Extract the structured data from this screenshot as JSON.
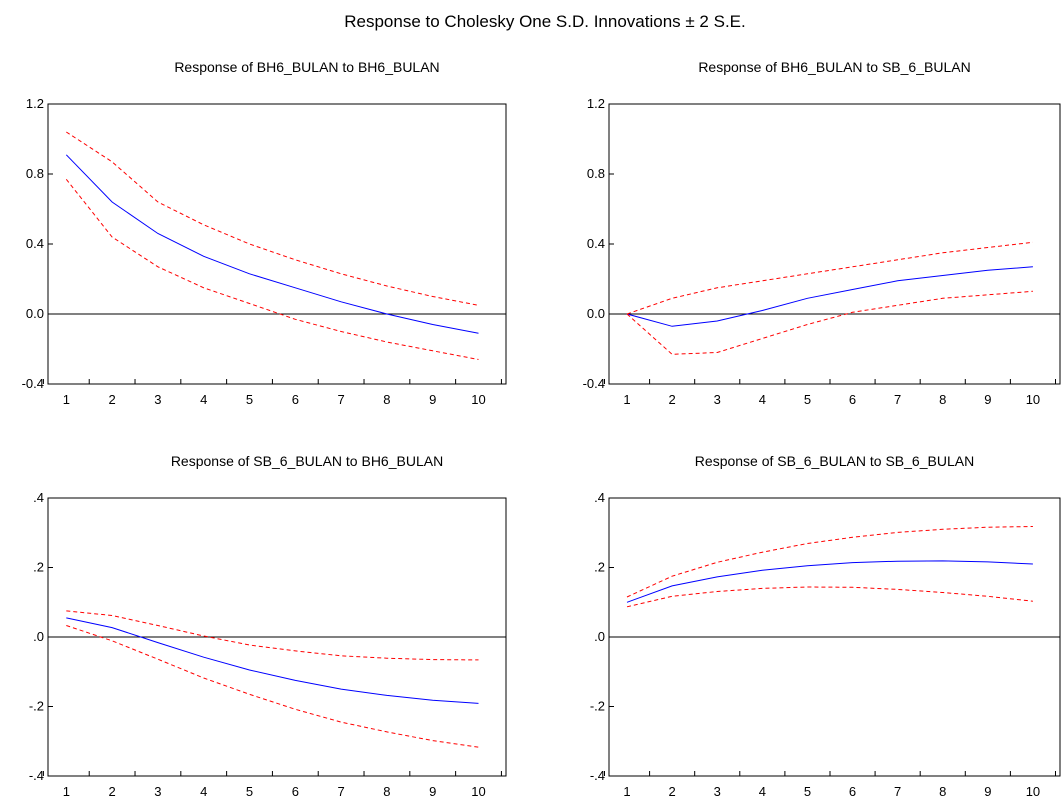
{
  "title": "Response to Cholesky One S.D. Innovations ± 2 S.E.",
  "colors": {
    "response": "#0000ff",
    "band": "#ff0000",
    "zero_line": "#000000",
    "frame": "#000000"
  },
  "chart_data": [
    {
      "type": "line",
      "title": "Response of BH6_BULAN to BH6_BULAN",
      "x": [
        1,
        2,
        3,
        4,
        5,
        6,
        7,
        8,
        9,
        10
      ],
      "xlim": [
        0.6,
        10.6
      ],
      "ylim": [
        -0.4,
        1.2
      ],
      "yticks": [
        -0.4,
        0.0,
        0.4,
        0.8,
        1.2
      ],
      "ytick_labels": [
        "-0.4",
        "0.0",
        "0.4",
        "0.8",
        "1.2"
      ],
      "series": [
        {
          "role": "response",
          "values": [
            0.91,
            0.64,
            0.46,
            0.33,
            0.23,
            0.15,
            0.07,
            0.0,
            -0.06,
            -0.11
          ]
        },
        {
          "role": "upper",
          "values": [
            1.04,
            0.87,
            0.64,
            0.51,
            0.4,
            0.31,
            0.23,
            0.16,
            0.1,
            0.05
          ]
        },
        {
          "role": "lower",
          "values": [
            0.77,
            0.44,
            0.27,
            0.15,
            0.06,
            -0.03,
            -0.1,
            -0.16,
            -0.21,
            -0.26
          ]
        }
      ]
    },
    {
      "type": "line",
      "title": "Response of BH6_BULAN to SB_6_BULAN",
      "x": [
        1,
        2,
        3,
        4,
        5,
        6,
        7,
        8,
        9,
        10
      ],
      "xlim": [
        0.6,
        10.6
      ],
      "ylim": [
        -0.4,
        1.2
      ],
      "yticks": [
        -0.4,
        0.0,
        0.4,
        0.8,
        1.2
      ],
      "ytick_labels": [
        "-0.4",
        "0.0",
        "0.4",
        "0.8",
        "1.2"
      ],
      "series": [
        {
          "role": "response",
          "values": [
            0.0,
            -0.07,
            -0.04,
            0.02,
            0.09,
            0.14,
            0.19,
            0.22,
            0.25,
            0.27
          ]
        },
        {
          "role": "upper",
          "values": [
            0.0,
            0.09,
            0.15,
            0.19,
            0.23,
            0.27,
            0.31,
            0.35,
            0.38,
            0.41
          ]
        },
        {
          "role": "lower",
          "values": [
            0.0,
            -0.23,
            -0.22,
            -0.14,
            -0.06,
            0.01,
            0.05,
            0.09,
            0.11,
            0.13
          ]
        }
      ]
    },
    {
      "type": "line",
      "title": "Response of SB_6_BULAN to BH6_BULAN",
      "x": [
        1,
        2,
        3,
        4,
        5,
        6,
        7,
        8,
        9,
        10
      ],
      "xlim": [
        0.6,
        10.6
      ],
      "ylim": [
        -0.4,
        0.4
      ],
      "yticks": [
        -0.4,
        -0.2,
        0.0,
        0.2,
        0.4
      ],
      "ytick_labels": [
        "-.4",
        "-.2",
        ".0",
        ".2",
        ".4"
      ],
      "series": [
        {
          "role": "response",
          "values": [
            0.055,
            0.027,
            -0.016,
            -0.058,
            -0.095,
            -0.125,
            -0.15,
            -0.168,
            -0.182,
            -0.191
          ]
        },
        {
          "role": "upper",
          "values": [
            0.075,
            0.062,
            0.033,
            0.003,
            -0.023,
            -0.04,
            -0.054,
            -0.061,
            -0.065,
            -0.066
          ]
        },
        {
          "role": "lower",
          "values": [
            0.033,
            -0.011,
            -0.064,
            -0.118,
            -0.165,
            -0.208,
            -0.245,
            -0.273,
            -0.298,
            -0.317
          ]
        }
      ]
    },
    {
      "type": "line",
      "title": "Response of SB_6_BULAN to SB_6_BULAN",
      "x": [
        1,
        2,
        3,
        4,
        5,
        6,
        7,
        8,
        9,
        10
      ],
      "xlim": [
        0.6,
        10.6
      ],
      "ylim": [
        -0.4,
        0.4
      ],
      "yticks": [
        -0.4,
        -0.2,
        0.0,
        0.2,
        0.4
      ],
      "ytick_labels": [
        "-.4",
        "-.2",
        ".0",
        ".2",
        ".4"
      ],
      "series": [
        {
          "role": "response",
          "values": [
            0.1,
            0.147,
            0.173,
            0.192,
            0.205,
            0.214,
            0.218,
            0.219,
            0.216,
            0.21
          ]
        },
        {
          "role": "upper",
          "values": [
            0.115,
            0.175,
            0.215,
            0.244,
            0.269,
            0.287,
            0.301,
            0.31,
            0.316,
            0.318
          ]
        },
        {
          "role": "lower",
          "values": [
            0.087,
            0.117,
            0.131,
            0.14,
            0.144,
            0.143,
            0.137,
            0.128,
            0.117,
            0.103
          ]
        }
      ]
    }
  ]
}
